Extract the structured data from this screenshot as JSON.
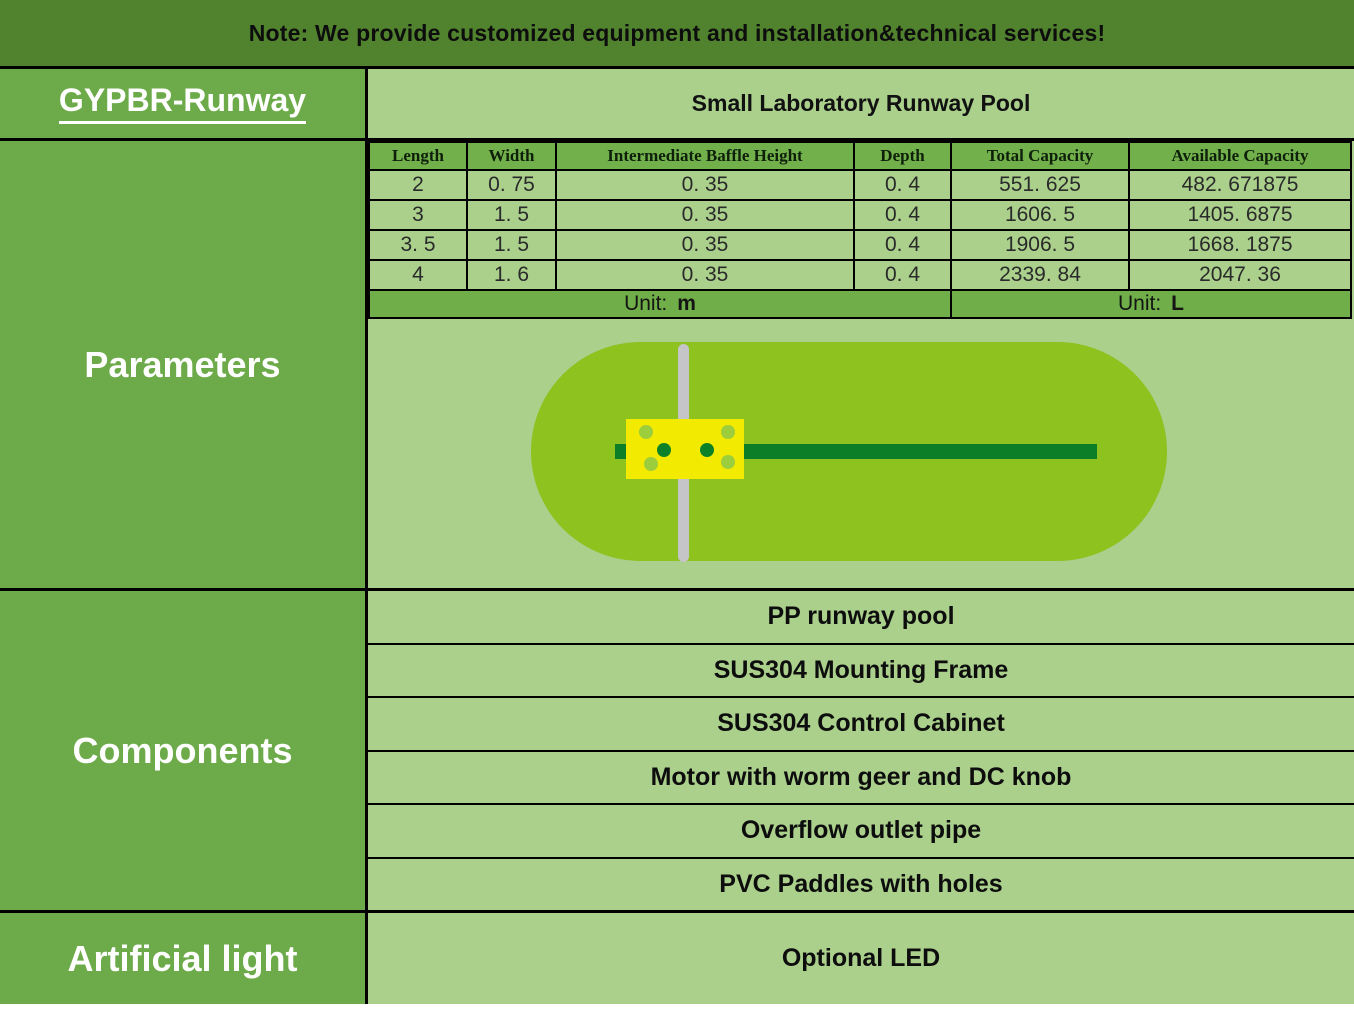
{
  "banner": {
    "note": "Note: We provide customized equipment and installation&technical services!"
  },
  "header": {
    "model": "GYPBR-Runway",
    "product_title": "Small Laboratory Runway Pool"
  },
  "sections": {
    "parameters_label": "Parameters",
    "components_label": "Components",
    "artificial_light_label": "Artificial light"
  },
  "parameters": {
    "table": {
      "headers": [
        "Length",
        "Width",
        "Intermediate Baffle Height",
        "Depth",
        "Total Capacity",
        "Available Capacity"
      ],
      "rows": [
        [
          "2",
          "0. 75",
          "0. 35",
          "0. 4",
          "551. 625",
          "482. 671875"
        ],
        [
          "3",
          "1. 5",
          "0. 35",
          "0. 4",
          "1606. 5",
          "1405. 6875"
        ],
        [
          "3. 5",
          "1. 5",
          "0. 35",
          "0. 4",
          "1906. 5",
          "1668. 1875"
        ],
        [
          "4",
          "1. 6",
          "0. 35",
          "0. 4",
          "2339. 84",
          "2047. 36"
        ]
      ],
      "unit_left_label": "Unit:",
      "unit_left_value": "m",
      "unit_right_label": "Unit:",
      "unit_right_value": "L"
    },
    "diagram": {
      "name": "runway-pool-top-view",
      "elements": [
        "pool-body",
        "center-divider-baffle",
        "drive-shaft",
        "paddle-wheel-with-holes"
      ]
    }
  },
  "components": {
    "items": [
      "PP runway pool",
      "SUS304 Mounting Frame",
      "SUS304 Control Cabinet",
      "Motor with worm geer and DC knob",
      "Overflow outlet pipe",
      "PVC Paddles with holes"
    ]
  },
  "artificial_light": {
    "value": "Optional LED"
  },
  "colors": {
    "banner_green": "#51832f",
    "medium_green": "#6dab4a",
    "header_green": "#71b04b",
    "unit_row_green": "#6fae48",
    "light_green": "#aad08c",
    "pool_green": "#8dc21f",
    "dark_green": "#0c7e28",
    "paddle_yellow": "#f2ea00",
    "baffle_gray": "#c5c5c7"
  }
}
